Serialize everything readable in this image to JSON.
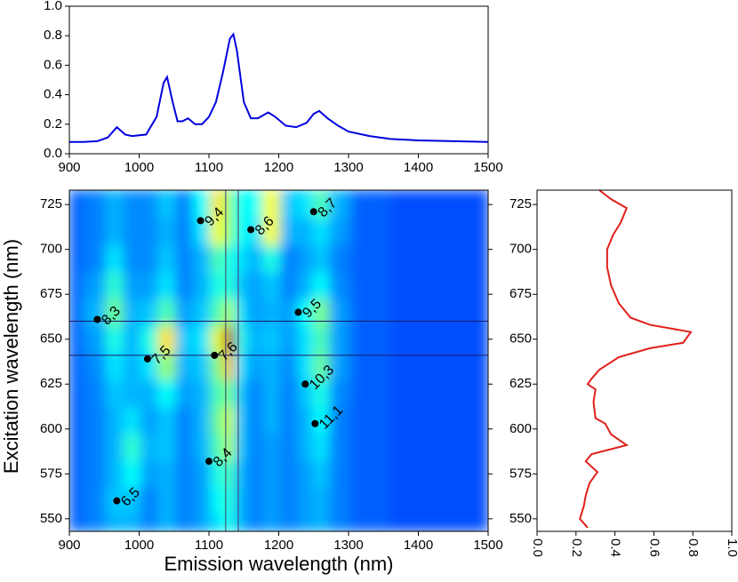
{
  "chart_data": [
    {
      "type": "line",
      "color": "#0000e0",
      "x": [
        900,
        920,
        940,
        955,
        968,
        980,
        990,
        1010,
        1025,
        1035,
        1040,
        1048,
        1055,
        1062,
        1070,
        1080,
        1090,
        1100,
        1110,
        1120,
        1130,
        1135,
        1140,
        1150,
        1160,
        1170,
        1185,
        1195,
        1210,
        1225,
        1240,
        1250,
        1258,
        1270,
        1285,
        1300,
        1330,
        1360,
        1400,
        1450,
        1500
      ],
      "values": [
        0.08,
        0.08,
        0.085,
        0.11,
        0.18,
        0.13,
        0.12,
        0.13,
        0.25,
        0.48,
        0.52,
        0.35,
        0.22,
        0.22,
        0.24,
        0.2,
        0.2,
        0.25,
        0.35,
        0.55,
        0.78,
        0.81,
        0.7,
        0.35,
        0.24,
        0.24,
        0.28,
        0.25,
        0.19,
        0.18,
        0.21,
        0.27,
        0.29,
        0.24,
        0.19,
        0.15,
        0.12,
        0.1,
        0.09,
        0.085,
        0.08
      ],
      "xlim": [
        900,
        1500
      ],
      "xticks": [
        900,
        1000,
        1100,
        1200,
        1300,
        1400,
        1500
      ],
      "ylim": [
        0,
        1
      ],
      "yticks": [
        {
          "value": 0,
          "label": "0.0"
        },
        0.2,
        0.4,
        0.6,
        0.8,
        {
          "value": 1,
          "label": "1.0"
        }
      ]
    },
    {
      "type": "contour",
      "xlabel": "Emission wavelength (nm)",
      "ylabel": "Excitation wavelength (nm)",
      "xlim": [
        900,
        1500
      ],
      "xticks": [
        900,
        1000,
        1100,
        1200,
        1300,
        1400,
        1500
      ],
      "ylim": [
        543,
        733
      ],
      "yticks": [
        550,
        575,
        600,
        625,
        650,
        675,
        700,
        725
      ],
      "x": [
        900,
        940,
        965,
        990,
        1015,
        1040,
        1065,
        1090,
        1115,
        1130,
        1145,
        1165,
        1190,
        1215,
        1240,
        1260,
        1285,
        1320,
        1400,
        1500
      ],
      "y": [
        545,
        560,
        575,
        590,
        605,
        620,
        635,
        650,
        665,
        680,
        695,
        710,
        725
      ],
      "z": [
        [
          0.22,
          0.25,
          0.3,
          0.3,
          0.25,
          0.3,
          0.25,
          0.28,
          0.35,
          0.4,
          0.3,
          0.25,
          0.28,
          0.25,
          0.28,
          0.3,
          0.25,
          0.22,
          0.2,
          0.2
        ],
        [
          0.22,
          0.25,
          0.32,
          0.32,
          0.25,
          0.3,
          0.25,
          0.28,
          0.38,
          0.42,
          0.3,
          0.25,
          0.28,
          0.25,
          0.28,
          0.3,
          0.25,
          0.22,
          0.2,
          0.2
        ],
        [
          0.22,
          0.25,
          0.3,
          0.38,
          0.28,
          0.3,
          0.25,
          0.28,
          0.4,
          0.45,
          0.3,
          0.25,
          0.28,
          0.25,
          0.28,
          0.32,
          0.25,
          0.22,
          0.2,
          0.2
        ],
        [
          0.22,
          0.25,
          0.3,
          0.42,
          0.3,
          0.32,
          0.25,
          0.3,
          0.45,
          0.55,
          0.32,
          0.25,
          0.28,
          0.25,
          0.3,
          0.35,
          0.25,
          0.22,
          0.2,
          0.2
        ],
        [
          0.22,
          0.25,
          0.3,
          0.35,
          0.28,
          0.32,
          0.25,
          0.3,
          0.48,
          0.58,
          0.32,
          0.25,
          0.3,
          0.25,
          0.3,
          0.38,
          0.25,
          0.22,
          0.2,
          0.2
        ],
        [
          0.22,
          0.25,
          0.32,
          0.3,
          0.3,
          0.38,
          0.28,
          0.3,
          0.45,
          0.5,
          0.32,
          0.25,
          0.3,
          0.25,
          0.32,
          0.4,
          0.26,
          0.22,
          0.2,
          0.2
        ],
        [
          0.22,
          0.26,
          0.35,
          0.3,
          0.35,
          0.52,
          0.3,
          0.32,
          0.5,
          0.7,
          0.35,
          0.28,
          0.3,
          0.26,
          0.35,
          0.48,
          0.28,
          0.22,
          0.2,
          0.2
        ],
        [
          0.22,
          0.28,
          0.4,
          0.3,
          0.4,
          0.65,
          0.32,
          0.35,
          0.6,
          0.95,
          0.4,
          0.3,
          0.32,
          0.28,
          0.35,
          0.45,
          0.28,
          0.22,
          0.2,
          0.2
        ],
        [
          0.22,
          0.3,
          0.48,
          0.3,
          0.32,
          0.45,
          0.28,
          0.32,
          0.45,
          0.55,
          0.35,
          0.28,
          0.3,
          0.28,
          0.38,
          0.5,
          0.28,
          0.22,
          0.2,
          0.2
        ],
        [
          0.22,
          0.28,
          0.42,
          0.28,
          0.28,
          0.35,
          0.25,
          0.3,
          0.4,
          0.42,
          0.32,
          0.28,
          0.32,
          0.25,
          0.3,
          0.38,
          0.26,
          0.22,
          0.2,
          0.2
        ],
        [
          0.22,
          0.25,
          0.35,
          0.26,
          0.26,
          0.32,
          0.25,
          0.3,
          0.45,
          0.4,
          0.35,
          0.3,
          0.4,
          0.25,
          0.28,
          0.32,
          0.25,
          0.22,
          0.2,
          0.2
        ],
        [
          0.22,
          0.25,
          0.3,
          0.26,
          0.26,
          0.3,
          0.25,
          0.35,
          0.62,
          0.5,
          0.38,
          0.35,
          0.62,
          0.3,
          0.3,
          0.35,
          0.28,
          0.22,
          0.2,
          0.2
        ],
        [
          0.22,
          0.25,
          0.3,
          0.26,
          0.26,
          0.32,
          0.25,
          0.38,
          0.65,
          0.5,
          0.38,
          0.38,
          0.62,
          0.32,
          0.35,
          0.45,
          0.3,
          0.22,
          0.2,
          0.2
        ]
      ],
      "points": {
        "x": [
          968,
          940,
          1012,
          1108,
          1100,
          1088,
          1160,
          1250,
          1228,
          1238,
          1252
        ],
        "y": [
          560,
          661,
          639,
          641,
          582,
          716,
          711,
          721,
          665,
          625,
          603
        ],
        "labels": [
          "6,5",
          "8,3",
          "7,5",
          "7,6",
          "8,4",
          "9,4",
          "8,6",
          "8,7",
          "9,5",
          "10,3",
          "11,1"
        ]
      },
      "cut_x": [
        1124,
        1142
      ],
      "cut_y": [
        641,
        660
      ]
    },
    {
      "type": "line",
      "orientation": "horizontal",
      "color": "#e0201a",
      "x": [
        545,
        550,
        557,
        563,
        570,
        576,
        582,
        586,
        591,
        597,
        603,
        606,
        615,
        622,
        625,
        628,
        633,
        640,
        645,
        648,
        654,
        658,
        662,
        670,
        680,
        690,
        700,
        708,
        715,
        723,
        728,
        733
      ],
      "values": [
        0.26,
        0.22,
        0.24,
        0.25,
        0.27,
        0.31,
        0.25,
        0.28,
        0.46,
        0.38,
        0.35,
        0.3,
        0.29,
        0.3,
        0.26,
        0.28,
        0.32,
        0.42,
        0.58,
        0.75,
        0.79,
        0.58,
        0.48,
        0.42,
        0.38,
        0.36,
        0.36,
        0.39,
        0.43,
        0.46,
        0.38,
        0.32
      ],
      "xlim": [
        543,
        733
      ],
      "xticks": [
        550,
        575,
        600,
        625,
        650,
        675,
        700,
        725
      ],
      "ylim": [
        0,
        1
      ],
      "yticks": [
        {
          "value": 0,
          "label": "0.0"
        },
        0.2,
        0.4,
        0.6,
        0.8,
        {
          "value": 1,
          "label": "1.0"
        }
      ]
    }
  ]
}
